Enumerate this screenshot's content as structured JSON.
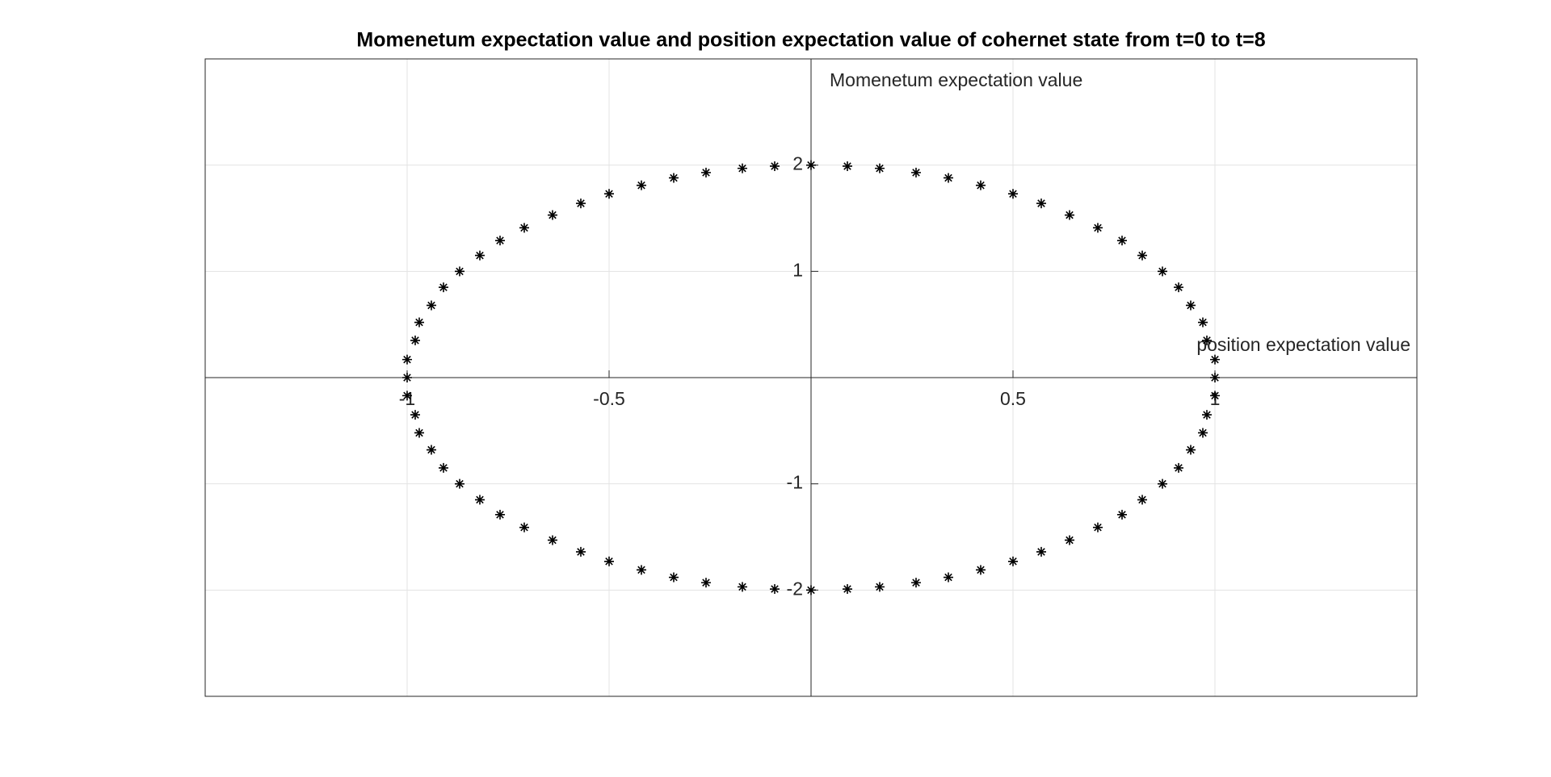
{
  "chart_data": {
    "type": "scatter",
    "title": "Momenetum expectation value and position expectation value of cohernet state from t=0 to t=8",
    "xlabel": "position expectation value",
    "ylabel": "Momenetum expectation value",
    "x": [
      1,
      1,
      0.98,
      0.97,
      0.94,
      0.91,
      0.87,
      0.82,
      0.77,
      0.71,
      0.64,
      0.57,
      0.5,
      0.42,
      0.34,
      0.26,
      0.17,
      0.09,
      0,
      -0.09,
      -0.17,
      -0.26,
      -0.34,
      -0.42,
      -0.5,
      -0.57,
      -0.64,
      -0.71,
      -0.77,
      -0.82,
      -0.87,
      -0.91,
      -0.94,
      -0.97,
      -0.98,
      -1,
      -1,
      -1,
      -0.98,
      -0.97,
      -0.94,
      -0.91,
      -0.87,
      -0.82,
      -0.77,
      -0.71,
      -0.64,
      -0.57,
      -0.5,
      -0.42,
      -0.34,
      -0.26,
      -0.17,
      -0.09,
      0,
      0.09,
      0.17,
      0.26,
      0.34,
      0.42,
      0.5,
      0.57,
      0.64,
      0.71,
      0.77,
      0.82,
      0.87,
      0.91,
      0.94,
      0.97,
      0.98,
      1
    ],
    "values": [
      0,
      0.17,
      0.35,
      0.52,
      0.68,
      0.85,
      1,
      1.15,
      1.29,
      1.41,
      1.53,
      1.64,
      1.73,
      1.81,
      1.88,
      1.93,
      1.97,
      1.99,
      2,
      1.99,
      1.97,
      1.93,
      1.88,
      1.81,
      1.73,
      1.64,
      1.53,
      1.41,
      1.29,
      1.15,
      1,
      0.85,
      0.68,
      0.52,
      0.35,
      0.17,
      0,
      -0.17,
      -0.35,
      -0.52,
      -0.68,
      -0.85,
      -1,
      -1.15,
      -1.29,
      -1.41,
      -1.53,
      -1.64,
      -1.73,
      -1.81,
      -1.88,
      -1.93,
      -1.97,
      -1.99,
      -2,
      -1.99,
      -1.97,
      -1.93,
      -1.88,
      -1.81,
      -1.73,
      -1.64,
      -1.53,
      -1.41,
      -1.29,
      -1.15,
      -1,
      -0.85,
      -0.68,
      -0.52,
      -0.35,
      -0.17
    ],
    "color": "#000000",
    "xlim": [
      -1.5,
      1.5
    ],
    "ylim": [
      -3,
      3
    ],
    "xticks": [
      -1,
      -0.5,
      0.5,
      1
    ],
    "yticks": [
      -2,
      -1,
      1,
      2
    ],
    "xgrid": [
      -1,
      -0.5,
      0,
      0.5,
      1
    ],
    "ygrid": [
      -2,
      -1,
      0,
      1,
      2
    ],
    "grid": true
  }
}
